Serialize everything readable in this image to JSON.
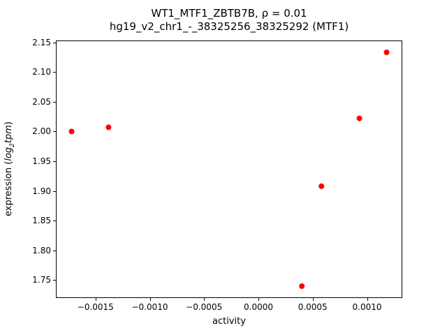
{
  "title": {
    "line1": "WT1_MTF1_ZBTB7B, ρ = 0.01",
    "line2": "hg19_v2_chr1_-_38325256_38325292 (MTF1)"
  },
  "axis_labels": {
    "xlabel": "activity",
    "ylabel_prefix": "expression (",
    "ylabel_math_base": "log",
    "ylabel_math_sub": "2",
    "ylabel_math_tail": "tpm",
    "ylabel_suffix": ")"
  },
  "chart_data": {
    "type": "scatter",
    "title": "WT1_MTF1_ZBTB7B, ρ = 0.01",
    "subtitle": "hg19_v2_chr1_-_38325256_38325292 (MTF1)",
    "xlabel": "activity",
    "ylabel": "expression (log2 tpm)",
    "x": [
      -0.00172,
      -0.00138,
      0.0004,
      0.00058,
      0.00093,
      0.00118
    ],
    "y": [
      2.0,
      2.007,
      1.74,
      1.908,
      2.022,
      2.133
    ],
    "xlim": [
      -0.001865,
      0.001325
    ],
    "ylim": [
      1.72,
      2.153
    ],
    "xticks": [
      -0.0015,
      -0.001,
      -0.0005,
      0.0,
      0.0005,
      0.001
    ],
    "yticks": [
      1.75,
      1.8,
      1.85,
      1.9,
      1.95,
      2.0,
      2.05,
      2.1,
      2.15
    ],
    "xtick_labels": [
      "−0.0015",
      "−0.0010",
      "−0.0005",
      "0.0000",
      "0.0005",
      "0.0010"
    ],
    "ytick_labels": [
      "1.75",
      "1.80",
      "1.85",
      "1.90",
      "1.95",
      "2.00",
      "2.05",
      "2.10",
      "2.15"
    ],
    "marker_color": "#ff0000",
    "marker_radius": 4,
    "grid": false,
    "legend": null
  }
}
